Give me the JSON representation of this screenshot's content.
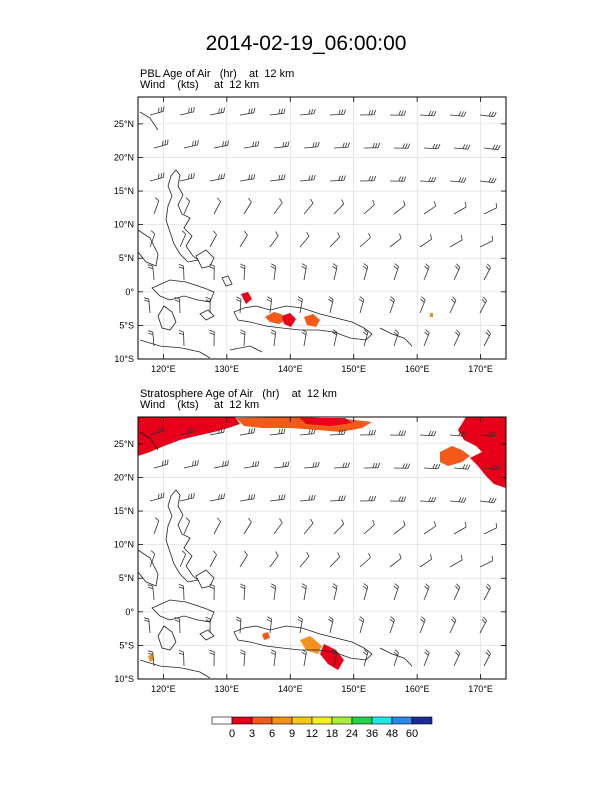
{
  "title": "2014-02-19_06:00:00",
  "panels": [
    {
      "line1": "PBL Age of Air   (hr)    at  12 km",
      "line2": "Wind    (kts)     at  12 km"
    },
    {
      "line1": "Stratosphere Age of Air   (hr)    at  12 km",
      "line2": "Wind    (kts)     at  12 km"
    }
  ],
  "axes": {
    "lon_labels": [
      "120°E",
      "130°E",
      "140°E",
      "150°E",
      "160°E",
      "170°E"
    ],
    "lat_labels": [
      "25°N",
      "20°N",
      "15°N",
      "10°N",
      "5°N",
      "0°",
      "5°S",
      "10°S"
    ]
  },
  "colorbar": {
    "labels": [
      "0",
      "3",
      "6",
      "9",
      "12",
      "18",
      "24",
      "36",
      "48",
      "60"
    ],
    "colors": [
      "#ffffff",
      "#e8001a",
      "#f25a1a",
      "#f5901a",
      "#f9c61a",
      "#f5f029",
      "#a6f03c",
      "#23d24b",
      "#1ee6e6",
      "#2a88e8",
      "#1b2b99"
    ]
  }
}
